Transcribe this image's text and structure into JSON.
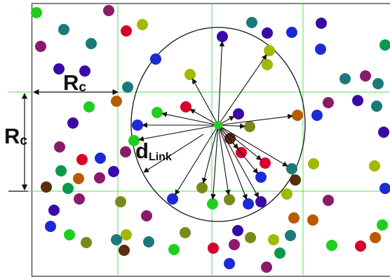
{
  "labels": {
    "rc_horizontal": {
      "main": "R",
      "sub": "c"
    },
    "rc_vertical": {
      "main": "R",
      "sub": "c"
    },
    "d_link": {
      "main": "d",
      "sub": "Link"
    }
  },
  "colors": {
    "grid": "#55e055",
    "frame": "#333333",
    "range_circle": "#111111",
    "link_arrow": "#111111",
    "nodes": [
      "#1fcf1f",
      "#8b1a6b",
      "#c0392b",
      "#1a7a7a",
      "#1a2bd6",
      "#3a0aa8",
      "#7a8a1a",
      "#b85a00",
      "#0a9a4a",
      "#a3b800",
      "#d6002a",
      "#5a2d0c"
    ]
  },
  "center_node_icon": "green-node",
  "link_count": 20
}
